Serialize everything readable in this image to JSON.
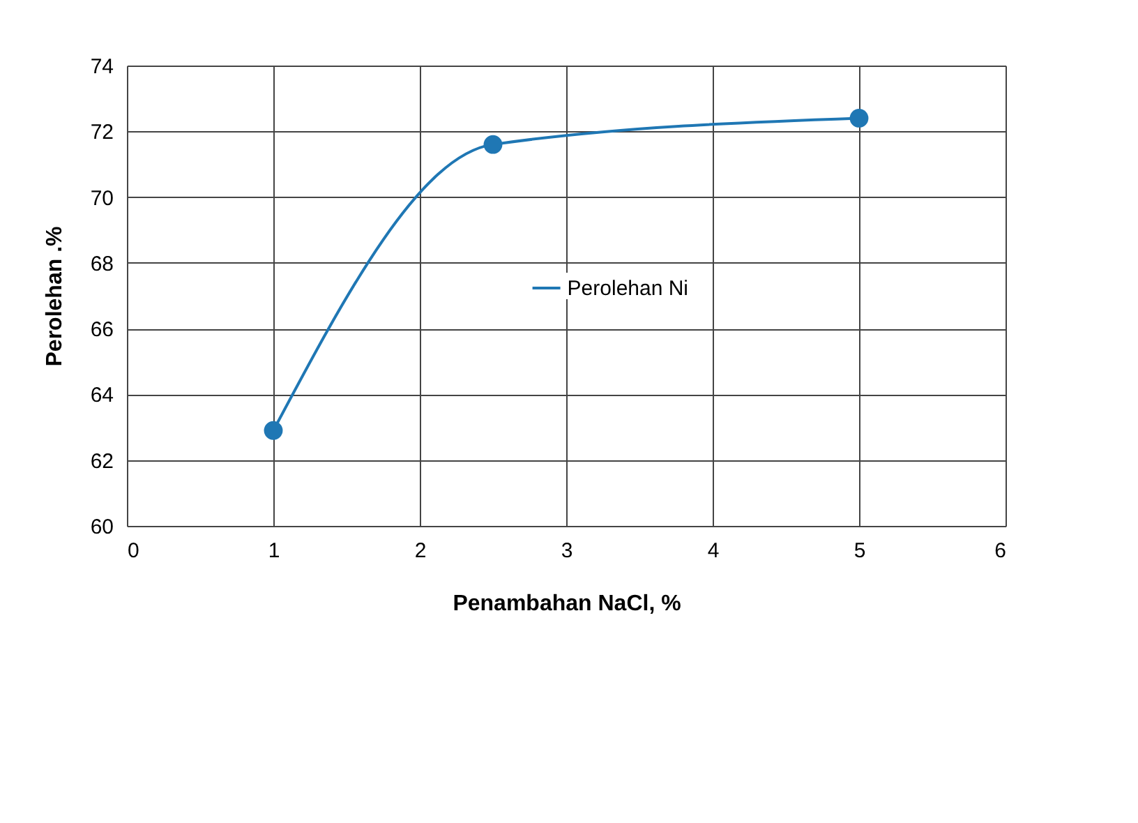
{
  "chart_data": {
    "type": "line",
    "xlabel": "Penambahan NaCl, %",
    "ylabel": "Perolehan .%",
    "x": [
      1,
      2.5,
      5
    ],
    "series": [
      {
        "name": "Perolehan Ni",
        "color": "#1f77b4",
        "values": [
          62.9,
          71.6,
          72.4
        ]
      }
    ],
    "xlim": [
      0,
      6
    ],
    "xticks": [
      0,
      1,
      2,
      3,
      4,
      5,
      6
    ],
    "ylim": [
      60,
      74
    ],
    "yticks": [
      60,
      62,
      64,
      66,
      68,
      70,
      72,
      74
    ],
    "grid": true,
    "legend": "right",
    "marker": "circle",
    "line_style": "solid"
  }
}
